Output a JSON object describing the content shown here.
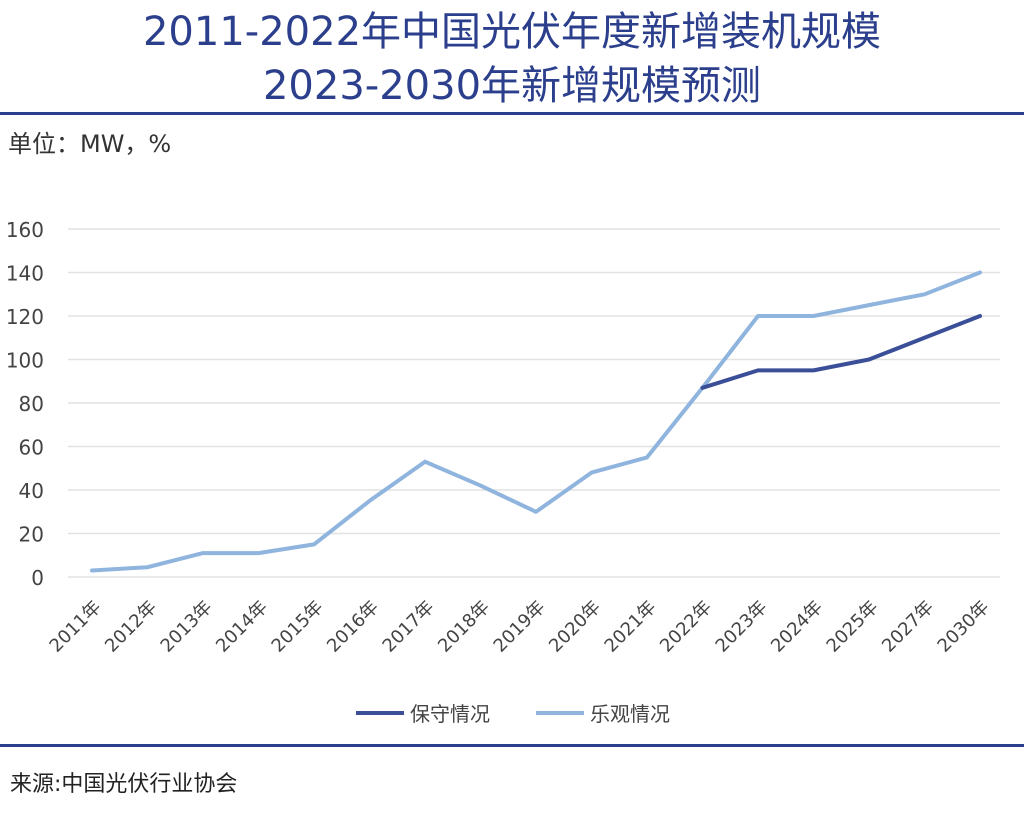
{
  "header": {
    "title_line1": "2011-2022年中国光伏年度新增装机规模",
    "title_line2": "2023-2030年新增规模预测",
    "unit": "单位：MW，%"
  },
  "footer": {
    "source": "来源:中国光伏行业协会"
  },
  "colors": {
    "title": "#2b3f8c",
    "conservative": "#3a4f97",
    "optimistic": "#8fb4de",
    "grid": "#e2e2e2"
  },
  "chart_data": {
    "type": "line",
    "categories": [
      "2011年",
      "2012年",
      "2013年",
      "2014年",
      "2015年",
      "2016年",
      "2017年",
      "2018年",
      "2019年",
      "2020年",
      "2021年",
      "2022年",
      "2023年",
      "2024年",
      "2025年",
      "2027年",
      "2030年"
    ],
    "ylim": [
      0,
      160
    ],
    "yticks": [
      0,
      20,
      40,
      60,
      80,
      100,
      120,
      140,
      160
    ],
    "grid": true,
    "legend_position": "bottom-center",
    "series": [
      {
        "name": "保守情况",
        "color": "#3a4f97",
        "values": [
          null,
          null,
          null,
          null,
          null,
          null,
          null,
          null,
          null,
          null,
          null,
          87,
          95,
          95,
          100,
          110,
          120
        ]
      },
      {
        "name": "乐观情况",
        "color": "#8fb4de",
        "values": [
          3,
          4.5,
          11,
          11,
          15,
          35,
          53,
          42,
          30,
          48,
          55,
          87,
          120,
          120,
          125,
          130,
          140
        ]
      }
    ]
  }
}
